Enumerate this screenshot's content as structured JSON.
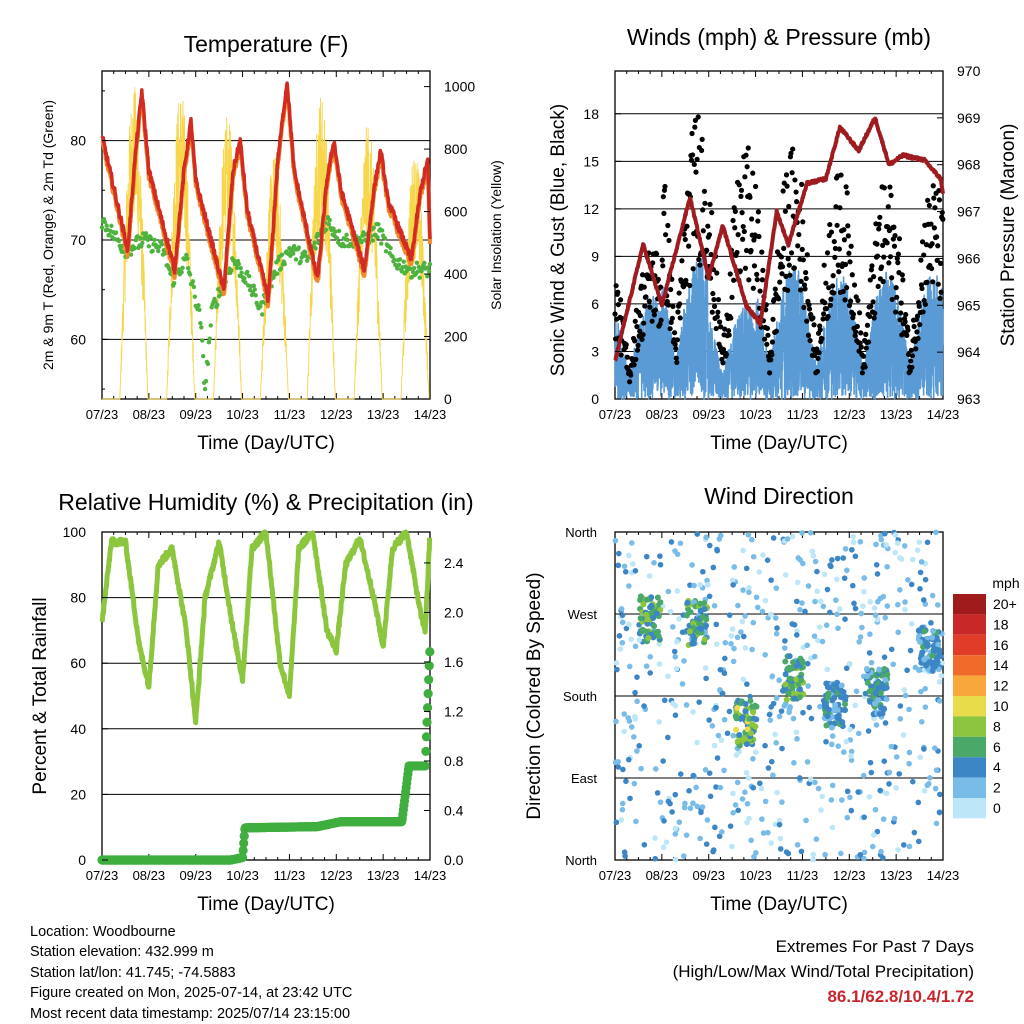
{
  "days": [
    "07/23",
    "08/23",
    "09/23",
    "10/23",
    "11/23",
    "12/23",
    "13/23",
    "14/23"
  ],
  "panels": {
    "temperature": {
      "title": "Temperature (F)",
      "xlabel": "Time (Day/UTC)",
      "ylabel_left": "2m & 9m T (Red, Orange) & 2m Td (Green)",
      "ylabel_right": "Solar Insolation (Yellow)",
      "left_ticks": [
        "60",
        "70",
        "80"
      ],
      "right_ticks": [
        "0",
        "200",
        "400",
        "600",
        "800",
        "1000"
      ]
    },
    "winds": {
      "title": "Winds (mph) & Pressure (mb)",
      "xlabel": "Time (Day/UTC)",
      "ylabel_left": "Sonic Wind & Gust (Blue, Black)",
      "ylabel_right": "Station Pressure (Maroon)",
      "left_ticks": [
        "0",
        "3",
        "6",
        "9",
        "12",
        "15",
        "18"
      ],
      "right_ticks": [
        "963",
        "964",
        "965",
        "966",
        "967",
        "968",
        "969",
        "970"
      ]
    },
    "humidity": {
      "title": "Relative Humidity (%) & Precipitation (in)",
      "xlabel": "Time (Day/UTC)",
      "ylabel_left": "Percent & Total Rainfall",
      "left_ticks": [
        "0",
        "20",
        "40",
        "60",
        "80",
        "100"
      ],
      "right_ticks": [
        "0.0",
        "0.4",
        "0.8",
        "1.2",
        "1.6",
        "2.0",
        "2.4"
      ]
    },
    "direction": {
      "title": "Wind Direction",
      "xlabel": "Time (Day/UTC)",
      "ylabel_left": "Direction (Colored By Speed)",
      "dir_ticks": [
        "North",
        "East",
        "South",
        "West",
        "North"
      ],
      "legend_title": "mph",
      "legend_labels": [
        "20+",
        "18",
        "16",
        "14",
        "12",
        "10",
        "8",
        "6",
        "4",
        "2",
        "0"
      ],
      "legend_colors": [
        "#a01c1c",
        "#c82828",
        "#e03c28",
        "#f06a2a",
        "#f8a83a",
        "#e8dc4a",
        "#8cc63e",
        "#4aa868",
        "#3c86c6",
        "#7abce8",
        "#bde6f8"
      ]
    }
  },
  "info": {
    "location": "Location: Woodbourne",
    "elevation": "Station elevation: 432.999 m",
    "latlon": "Station lat/lon: 41.745; -74.5883",
    "created": "Figure created on Mon, 2025-07-14, at 23:42 UTC",
    "recent": "Most recent data timestamp: 2025/07/14 23:15:00"
  },
  "extremes": {
    "line1": "Extremes For Past 7 Days",
    "line2": "(High/Low/Max Wind/Total Precipitation)",
    "values": "86.1/62.8/10.4/1.72"
  },
  "chart_data": [
    {
      "type": "line",
      "title": "Temperature (F)",
      "x": [
        "07/23",
        "08/23",
        "09/23",
        "10/23",
        "11/23",
        "12/23",
        "13/23",
        "14/23"
      ],
      "ylim": [
        54,
        87
      ],
      "y2lim": [
        0,
        1050
      ],
      "series": [
        {
          "name": "2m T",
          "color": "#d22b22",
          "points": [
            [
              0,
              80.5
            ],
            [
              0.55,
              69
            ],
            [
              0.7,
              78
            ],
            [
              0.85,
              85
            ],
            [
              1,
              77
            ],
            [
              1.55,
              67
            ],
            [
              1.75,
              77
            ],
            [
              1.9,
              82
            ],
            [
              2,
              76
            ],
            [
              2.6,
              65
            ],
            [
              2.8,
              77
            ],
            [
              2.95,
              80
            ],
            [
              3.1,
              73
            ],
            [
              3.55,
              64
            ],
            [
              3.75,
              78
            ],
            [
              3.95,
              86
            ],
            [
              4.1,
              77
            ],
            [
              4.6,
              66
            ],
            [
              4.8,
              76
            ],
            [
              4.95,
              80
            ],
            [
              5.1,
              75
            ],
            [
              5.6,
              67
            ],
            [
              5.8,
              75
            ],
            [
              5.95,
              79
            ],
            [
              6.1,
              74
            ],
            [
              6.6,
              68
            ],
            [
              6.8,
              75
            ],
            [
              6.95,
              78
            ],
            [
              7.0,
              70
            ]
          ]
        },
        {
          "name": "2m Td",
          "color": "#4eb33e",
          "points": [
            [
              0,
              72
            ],
            [
              0.5,
              69
            ],
            [
              0.9,
              70
            ],
            [
              1.3,
              69
            ],
            [
              1.5,
              66
            ],
            [
              1.8,
              68
            ],
            [
              2.1,
              62
            ],
            [
              2.2,
              55
            ],
            [
              2.35,
              63
            ],
            [
              2.8,
              68
            ],
            [
              3.1,
              66
            ],
            [
              3.4,
              63
            ],
            [
              3.7,
              67
            ],
            [
              4.0,
              69
            ],
            [
              4.4,
              68
            ],
            [
              4.8,
              72
            ],
            [
              5.1,
              70
            ],
            [
              5.6,
              70
            ],
            [
              5.9,
              71
            ],
            [
              6.2,
              68
            ],
            [
              6.6,
              67
            ],
            [
              7.0,
              67
            ]
          ]
        },
        {
          "name": "Solar Insolation",
          "axis": "right",
          "color": "#f7d64a",
          "daily_peaks": [
            1010,
            1000,
            920,
            790,
            990,
            890,
            800,
            900
          ]
        }
      ]
    },
    {
      "type": "line",
      "title": "Winds (mph) & Pressure (mb)",
      "x": [
        "07/23",
        "08/23",
        "09/23",
        "10/23",
        "11/23",
        "12/23",
        "13/23",
        "14/23"
      ],
      "ylim": [
        0,
        20.7
      ],
      "y2lim": [
        963,
        970
      ],
      "series": [
        {
          "name": "Sonic Wind",
          "color": "#5b9bd5",
          "daily_max": [
            6.5,
            9,
            6,
            8.5,
            8,
            8,
            8,
            7
          ]
        },
        {
          "name": "Gust",
          "color": "#000000",
          "daily_max": [
            10,
            18.7,
            16,
            16,
            14.5,
            14,
            14,
            12
          ]
        },
        {
          "name": "Station Pressure",
          "axis": "right",
          "color": "#9e1b1f",
          "points": [
            [
              0,
              963.8
            ],
            [
              0.6,
              966.3
            ],
            [
              1.0,
              965.0
            ],
            [
              1.6,
              967.3
            ],
            [
              2.0,
              965.6
            ],
            [
              2.3,
              966.7
            ],
            [
              2.8,
              965.0
            ],
            [
              3.1,
              964.6
            ],
            [
              3.45,
              967.0
            ],
            [
              3.7,
              966.3
            ],
            [
              4.1,
              967.6
            ],
            [
              4.5,
              967.7
            ],
            [
              4.8,
              968.8
            ],
            [
              5.2,
              968.3
            ],
            [
              5.55,
              969.0
            ],
            [
              5.85,
              968.0
            ],
            [
              6.15,
              968.2
            ],
            [
              6.6,
              968.1
            ],
            [
              6.95,
              967.7
            ],
            [
              7.0,
              967.4
            ]
          ]
        }
      ]
    },
    {
      "type": "line",
      "title": "Relative Humidity (%) & Precipitation (in)",
      "x": [
        "07/23",
        "08/23",
        "09/23",
        "10/23",
        "11/23",
        "12/23",
        "13/23",
        "14/23"
      ],
      "ylim": [
        0,
        100
      ],
      "y2lim": [
        0,
        2.65
      ],
      "series": [
        {
          "name": "Relative Humidity",
          "color": "#8cc63e",
          "points": [
            [
              0,
              72
            ],
            [
              0.2,
              97
            ],
            [
              0.5,
              97
            ],
            [
              0.8,
              65
            ],
            [
              1.0,
              53
            ],
            [
              1.2,
              90
            ],
            [
              1.5,
              95
            ],
            [
              1.8,
              70
            ],
            [
              2.0,
              42
            ],
            [
              2.2,
              80
            ],
            [
              2.5,
              97
            ],
            [
              2.8,
              70
            ],
            [
              3.0,
              55
            ],
            [
              3.2,
              95
            ],
            [
              3.5,
              100
            ],
            [
              3.8,
              60
            ],
            [
              4.0,
              50
            ],
            [
              4.2,
              95
            ],
            [
              4.5,
              100
            ],
            [
              4.8,
              70
            ],
            [
              5.0,
              64
            ],
            [
              5.2,
              90
            ],
            [
              5.5,
              98
            ],
            [
              5.8,
              80
            ],
            [
              6.0,
              65
            ],
            [
              6.2,
              95
            ],
            [
              6.5,
              100
            ],
            [
              6.8,
              75
            ],
            [
              6.9,
              70
            ],
            [
              7.0,
              100
            ]
          ]
        },
        {
          "name": "Total Rainfall",
          "axis": "right",
          "color": "#3fae3f",
          "points": [
            [
              0,
              0
            ],
            [
              2.75,
              0
            ],
            [
              3.0,
              0.02
            ],
            [
              3.05,
              0.26
            ],
            [
              4.6,
              0.27
            ],
            [
              5.1,
              0.31
            ],
            [
              6.4,
              0.31
            ],
            [
              6.55,
              0.76
            ],
            [
              6.9,
              0.76
            ],
            [
              6.95,
              1.25
            ],
            [
              7.0,
              1.72
            ]
          ]
        }
      ]
    },
    {
      "type": "scatter",
      "title": "Wind Direction",
      "x": [
        "07/23",
        "08/23",
        "09/23",
        "10/23",
        "11/23",
        "12/23",
        "13/23",
        "14/23"
      ],
      "ylim": [
        0,
        360
      ],
      "y_tick_labels": [
        "North",
        "East",
        "South",
        "West",
        "North"
      ],
      "color_scale_mph": [
        0,
        2,
        4,
        6,
        8,
        10,
        12,
        14,
        16,
        18,
        20
      ],
      "clusters": [
        {
          "day": 0.75,
          "direction": 265,
          "speed": 8
        },
        {
          "day": 1.75,
          "direction": 260,
          "speed": 7
        },
        {
          "day": 2.8,
          "direction": 150,
          "speed": 9
        },
        {
          "day": 3.8,
          "direction": 200,
          "speed": 8
        },
        {
          "day": 4.7,
          "direction": 170,
          "speed": 6
        },
        {
          "day": 5.6,
          "direction": 185,
          "speed": 6
        },
        {
          "day": 6.7,
          "direction": 230,
          "speed": 5
        }
      ]
    }
  ]
}
